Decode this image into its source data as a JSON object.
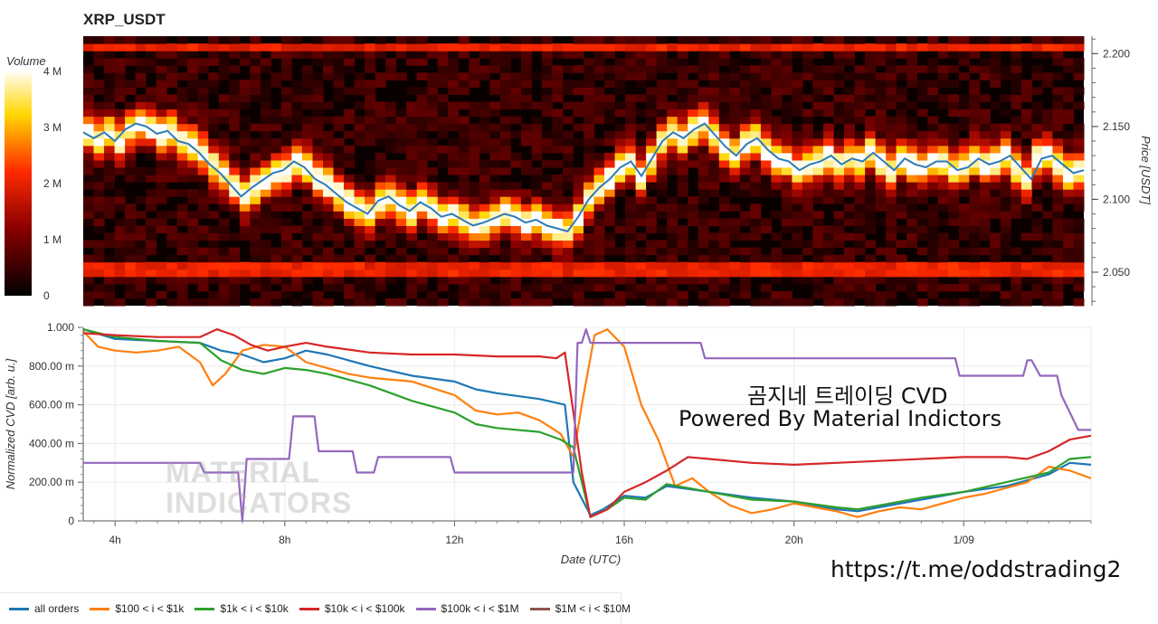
{
  "title": "XRP_USDT",
  "overlay": {
    "line1": "곰지네 트레이딩 CVD",
    "line2": "Powered By Material Indictors"
  },
  "watermark": {
    "line1": "MATERIAL",
    "line2": "INDICATORS"
  },
  "telegram": "https://t.me/oddstrading2",
  "colors": {
    "all_orders": "#1f77b4",
    "o100": "#ff7f0e",
    "o1k": "#2ca02c",
    "o10k": "#d62728",
    "o100k": "#9467bd",
    "o1m": "#8c564b",
    "price_line": "#2c7bb6"
  },
  "chart_data": [
    {
      "type": "heatmap",
      "title": "XRP_USDT",
      "ylabel": "Price [USDT]",
      "ylim": [
        2.027,
        2.212
      ],
      "yticks": [
        "2.200",
        "2.150",
        "2.100",
        "2.050"
      ],
      "ytick_values": [
        2.2,
        2.15,
        2.1,
        2.05
      ],
      "colorbar": {
        "label": "Volume",
        "ticks": [
          "4 M",
          "3 M",
          "2 M",
          "1 M",
          "0"
        ],
        "tick_values": [
          4000000,
          3000000,
          2000000,
          1000000,
          0
        ]
      },
      "x_hours": [
        3.25,
        3.5,
        3.75,
        4,
        4.25,
        4.5,
        4.75,
        5,
        5.25,
        5.5,
        5.75,
        6,
        6.25,
        6.5,
        6.75,
        7,
        7.25,
        7.5,
        7.75,
        8,
        8.25,
        8.5,
        8.75,
        9,
        9.25,
        9.5,
        9.75,
        10,
        10.25,
        10.5,
        10.75,
        11,
        11.25,
        11.5,
        11.75,
        12,
        12.25,
        12.5,
        12.75,
        13,
        13.25,
        13.5,
        13.75,
        14,
        14.25,
        14.5,
        14.75,
        15,
        15.25,
        15.5,
        15.75,
        16,
        16.25,
        16.5,
        16.75,
        17,
        17.25,
        17.5,
        17.75,
        18,
        18.25,
        18.5,
        18.75,
        19,
        19.25,
        19.5,
        19.75,
        20,
        20.25,
        20.5,
        20.75,
        21,
        21.25,
        21.5,
        21.75,
        22,
        22.25,
        22.5,
        22.75,
        23,
        23.25,
        23.5,
        23.75,
        24,
        24.25,
        24.5,
        24.75,
        25,
        25.25,
        25.5,
        25.75,
        26,
        26.25,
        26.5,
        26.75,
        27
      ],
      "price": [
        2.146,
        2.142,
        2.146,
        2.14,
        2.148,
        2.152,
        2.15,
        2.145,
        2.147,
        2.14,
        2.138,
        2.132,
        2.124,
        2.118,
        2.11,
        2.102,
        2.108,
        2.113,
        2.118,
        2.12,
        2.126,
        2.122,
        2.114,
        2.11,
        2.104,
        2.098,
        2.094,
        2.09,
        2.099,
        2.102,
        2.096,
        2.092,
        2.098,
        2.094,
        2.088,
        2.09,
        2.086,
        2.082,
        2.084,
        2.087,
        2.09,
        2.088,
        2.084,
        2.086,
        2.082,
        2.08,
        2.078,
        2.088,
        2.1,
        2.108,
        2.114,
        2.122,
        2.126,
        2.116,
        2.128,
        2.14,
        2.146,
        2.142,
        2.148,
        2.152,
        2.144,
        2.136,
        2.13,
        2.138,
        2.142,
        2.134,
        2.128,
        2.126,
        2.12,
        2.124,
        2.126,
        2.13,
        2.124,
        2.128,
        2.126,
        2.132,
        2.126,
        2.12,
        2.128,
        2.124,
        2.122,
        2.126,
        2.126,
        2.12,
        2.122,
        2.128,
        2.124,
        2.126,
        2.13,
        2.122,
        2.114,
        2.128,
        2.13,
        2.124,
        2.118,
        2.12
      ],
      "levels": [
        2.05,
        2.055,
        2.205
      ]
    },
    {
      "type": "line",
      "xlabel": "Date (UTC)",
      "ylabel": "Normalized CVD [arb. u.]",
      "xlim": [
        3.25,
        27.0
      ],
      "ylim": [
        0,
        1000
      ],
      "xticks": [
        "4h",
        "8h",
        "12h",
        "16h",
        "20h",
        "1/09"
      ],
      "xtick_values": [
        4,
        8,
        12,
        16,
        20,
        24
      ],
      "yticks": [
        "1.000",
        "800.00 m",
        "600.00 m",
        "400.00 m",
        "200.00 m",
        "0"
      ],
      "ytick_values": [
        1000,
        800,
        600,
        400,
        200,
        0
      ],
      "legend_position": "bottom",
      "series": [
        {
          "key": "all_orders",
          "name": "all orders",
          "x": [
            3.25,
            4,
            5,
            6,
            6.5,
            7,
            7.5,
            8,
            8.5,
            9,
            9.5,
            10,
            11,
            12,
            12.5,
            13,
            14,
            14.6,
            14.8,
            15.2,
            15.5,
            16,
            16.5,
            17,
            18,
            19,
            20,
            21,
            21.5,
            22,
            23,
            24,
            25,
            26,
            26.5,
            27
          ],
          "y": [
            990,
            940,
            930,
            920,
            880,
            860,
            820,
            840,
            880,
            860,
            830,
            800,
            750,
            720,
            680,
            660,
            630,
            600,
            200,
            30,
            60,
            130,
            120,
            180,
            150,
            120,
            100,
            60,
            50,
            70,
            110,
            150,
            180,
            240,
            300,
            290
          ]
        },
        {
          "key": "o100",
          "name": "$100 < i < $1k",
          "x": [
            3.25,
            3.6,
            4,
            4.5,
            5,
            5.5,
            6,
            6.3,
            6.6,
            7,
            7.5,
            8,
            8.5,
            9,
            9.5,
            10,
            11,
            12,
            12.5,
            13,
            13.5,
            14,
            14.5,
            14.8,
            15.0,
            15.3,
            15.6,
            16,
            16.4,
            16.8,
            17.2,
            17.6,
            18,
            18.5,
            19,
            19.5,
            20,
            20.5,
            21,
            21.5,
            22,
            22.5,
            23,
            23.5,
            24,
            24.5,
            25,
            25.5,
            26,
            26.5,
            27
          ],
          "y": [
            980,
            900,
            880,
            870,
            880,
            900,
            820,
            700,
            760,
            880,
            910,
            900,
            820,
            790,
            760,
            740,
            720,
            650,
            570,
            550,
            560,
            520,
            450,
            330,
            600,
            960,
            990,
            900,
            600,
            420,
            180,
            220,
            150,
            80,
            40,
            60,
            90,
            70,
            50,
            20,
            50,
            70,
            60,
            90,
            120,
            140,
            170,
            200,
            280,
            260,
            220
          ]
        },
        {
          "key": "o1k",
          "name": "$1k < i < $10k",
          "x": [
            3.25,
            4,
            5,
            6,
            6.5,
            7,
            7.5,
            8,
            8.5,
            9,
            9.5,
            10,
            11,
            12,
            12.5,
            13,
            14,
            14.5,
            14.8,
            15.2,
            15.6,
            16,
            16.5,
            17,
            18,
            19,
            20,
            21,
            21.5,
            22,
            23,
            24,
            25,
            26,
            26.5,
            27
          ],
          "y": [
            990,
            950,
            930,
            920,
            830,
            780,
            760,
            790,
            780,
            760,
            730,
            700,
            620,
            560,
            500,
            480,
            460,
            420,
            380,
            20,
            60,
            120,
            110,
            190,
            150,
            110,
            100,
            70,
            60,
            80,
            120,
            150,
            200,
            250,
            320,
            330
          ]
        },
        {
          "key": "o10k",
          "name": "$10k < i < $100k",
          "x": [
            3.25,
            4,
            5,
            6,
            6.4,
            6.8,
            7.2,
            7.6,
            8,
            8.5,
            9,
            10,
            11,
            12,
            13,
            14,
            14.4,
            14.6,
            14.8,
            15.0,
            15.2,
            15.6,
            16,
            16.5,
            17,
            17.5,
            18,
            19,
            20,
            21,
            22,
            23,
            24,
            25,
            25.5,
            26,
            26.5,
            27
          ],
          "y": [
            970,
            960,
            950,
            950,
            990,
            960,
            910,
            880,
            900,
            920,
            900,
            870,
            860,
            860,
            850,
            850,
            840,
            870,
            560,
            250,
            20,
            60,
            150,
            200,
            260,
            330,
            320,
            300,
            290,
            300,
            310,
            320,
            330,
            330,
            320,
            360,
            420,
            440
          ]
        },
        {
          "key": "o100k",
          "name": "$100k < i < $1M",
          "x": [
            3.25,
            5.0,
            6.0,
            6.1,
            6.9,
            7.0,
            7.1,
            8.1,
            8.2,
            8.7,
            8.8,
            9.6,
            9.7,
            10.1,
            10.2,
            11.9,
            12.0,
            14.8,
            14.9,
            15.0,
            15.1,
            15.2,
            17.8,
            17.9,
            23.8,
            23.9,
            25.4,
            25.5,
            25.6,
            25.8,
            26.2,
            26.3,
            26.7,
            27
          ],
          "y": [
            300,
            300,
            300,
            250,
            250,
            0,
            320,
            320,
            540,
            540,
            360,
            360,
            250,
            250,
            330,
            330,
            250,
            250,
            920,
            920,
            990,
            920,
            920,
            840,
            840,
            750,
            750,
            830,
            830,
            750,
            750,
            650,
            470,
            470
          ]
        },
        {
          "key": "o1m",
          "name": "$1M < i < $10M",
          "x": [],
          "y": []
        }
      ]
    }
  ]
}
